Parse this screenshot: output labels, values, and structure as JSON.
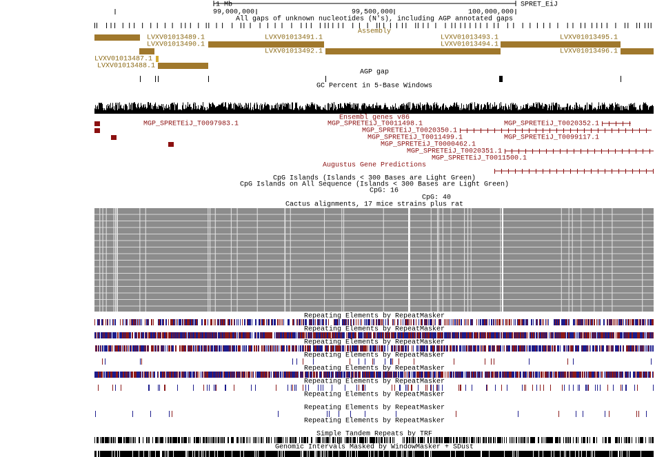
{
  "ruler": {
    "scale": "1 Mb",
    "assembly": "SPRET_EiJ",
    "positions": [
      "99,000,000",
      "99,500,000",
      "100,000,000"
    ]
  },
  "tracks": {
    "gaps": "All gaps of unknown nucleotides (N's), including AGP annotated gaps",
    "assembly": {
      "title": "Assembly",
      "contigs": [
        "LVXV01013489.1",
        "LVXV01013491.1",
        "LVXV01013493.1",
        "LVXV01013495.1",
        "LVXV01013490.1",
        "LVXV01013494.1",
        "LVXV01013492.1",
        "LVXV01013496.1",
        "LVXV01013487.1",
        "LVXV01013488.1"
      ]
    },
    "agp_gap": "AGP gap",
    "gc_percent": "GC Percent in 5-Base Windows",
    "ensembl": {
      "title": "Ensembl genes v86",
      "genes": [
        "MGP_SPRETEiJ_T0097983.1",
        "MGP_SPRETEiJ_T0011498.1",
        "MGP_SPRETEiJ_T0020352.1",
        "MGP_SPRETEiJ_T0020350.1",
        "MGP_SPRETEiJ_T0011499.1",
        "MGP_SPRETEiJ_T0099117.1",
        "MGP_SPRETEiJ_T0000462.1",
        "MGP_SPRETEiJ_T0020351.1",
        "MGP_SPRETEiJ_T0011500.1"
      ]
    },
    "augustus": "Augustus Gene Predictions",
    "cpg_islands": "CpG Islands (Islands < 300 Bases are Light Green)",
    "cpg_all": "CpG Islands on All Sequence (Islands < 300 Bases are Light Green)",
    "cpg_labels": [
      "CpG: 16",
      "CpG: 40"
    ],
    "cactus": "Cactus alignments, 17 mice strains plus rat",
    "repeatmasker": [
      "Repeating Elements by RepeatMasker",
      "Repeating Elements by RepeatMasker",
      "Repeating Elements by RepeatMasker",
      "Repeating Elements by RepeatMasker",
      "Repeating Elements by RepeatMasker",
      "Repeating Elements by RepeatMasker",
      "Repeating Elements by RepeatMasker",
      "Repeating Elements by RepeatMasker",
      "Repeating Elements by RepeatMasker"
    ],
    "trf": "Simple Tandem Repeats by TRF",
    "windowmasker": "Genomic Intervals Masked by WindowMasker + SDust"
  }
}
